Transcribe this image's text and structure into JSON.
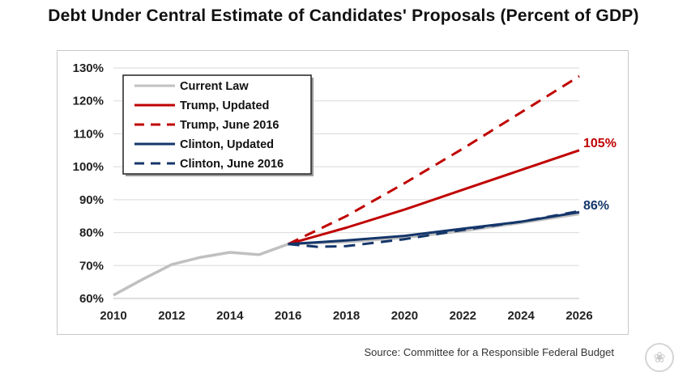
{
  "chart_data": {
    "type": "line",
    "title": "Debt Under Central Estimate of Candidates' Proposals (Percent of GDP)",
    "xlabel": "",
    "ylabel": "",
    "xlim": [
      2010,
      2026
    ],
    "ylim": [
      60,
      130
    ],
    "x_ticks": [
      "2010",
      "2012",
      "2014",
      "2016",
      "2018",
      "2020",
      "2022",
      "2024",
      "2026"
    ],
    "y_ticks": [
      "60%",
      "70%",
      "80%",
      "90%",
      "100%",
      "110%",
      "120%",
      "130%"
    ],
    "grid": "horizontal",
    "legend_position": "top-left",
    "series": [
      {
        "name": "Current Law",
        "color": "#c0c0c0",
        "dash": "solid",
        "points": [
          [
            2010,
            61
          ],
          [
            2011,
            65.8
          ],
          [
            2012,
            70.3
          ],
          [
            2013,
            72.5
          ],
          [
            2014,
            74
          ],
          [
            2015,
            73.3
          ],
          [
            2016,
            76.5
          ],
          [
            2018,
            77.2
          ],
          [
            2020,
            78.5
          ],
          [
            2022,
            80.5
          ],
          [
            2024,
            83
          ],
          [
            2026,
            85.7
          ]
        ]
      },
      {
        "name": "Trump, Updated",
        "color": "#c00000",
        "dash": "solid",
        "points": [
          [
            2016,
            76.5
          ],
          [
            2018,
            81.5
          ],
          [
            2020,
            87
          ],
          [
            2022,
            93
          ],
          [
            2024,
            99
          ],
          [
            2026,
            105
          ]
        ]
      },
      {
        "name": "Trump, June 2016",
        "color": "#c00000",
        "dash": "dashed",
        "points": [
          [
            2016,
            76.5
          ],
          [
            2018,
            85
          ],
          [
            2020,
            95
          ],
          [
            2022,
            105.5
          ],
          [
            2024,
            116.5
          ],
          [
            2026,
            127.5
          ]
        ]
      },
      {
        "name": "Clinton, Updated",
        "color": "#14366a",
        "dash": "solid",
        "points": [
          [
            2016,
            76.5
          ],
          [
            2018,
            77.6
          ],
          [
            2020,
            79
          ],
          [
            2022,
            81.2
          ],
          [
            2024,
            83.3
          ],
          [
            2026,
            86.2
          ]
        ]
      },
      {
        "name": "Clinton, June 2016",
        "color": "#14366a",
        "dash": "dashed",
        "points": [
          [
            2016,
            76.5
          ],
          [
            2017,
            75.7
          ],
          [
            2018,
            75.9
          ],
          [
            2020,
            78
          ],
          [
            2022,
            80.8
          ],
          [
            2024,
            83.3
          ],
          [
            2026,
            86.5
          ]
        ]
      }
    ],
    "annotations": [
      {
        "text": "105%",
        "x": 2026,
        "y": 105,
        "color": "#c00000"
      },
      {
        "text": "86%",
        "x": 2026,
        "y": 86,
        "color": "#14366a"
      }
    ]
  },
  "source": "Source: Committee for a Responsible Federal Budget"
}
